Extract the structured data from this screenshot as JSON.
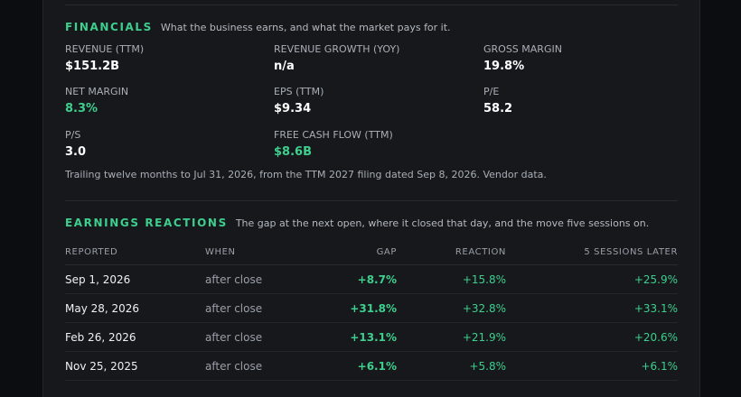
{
  "financials": {
    "title": "FINANCIALS",
    "subtitle": "What the business earns, and what the market pays for it.",
    "metrics": [
      {
        "label": "REVENUE (TTM)",
        "value": "$151.2B"
      },
      {
        "label": "REVENUE GROWTH (YOY)",
        "value": "n/a"
      },
      {
        "label": "GROSS MARGIN",
        "value": "19.8%"
      },
      {
        "label": "NET MARGIN",
        "value": "8.3%"
      },
      {
        "label": "EPS (TTM)",
        "value": "$9.34"
      },
      {
        "label": "P/E",
        "value": "58.2"
      },
      {
        "label": "P/S",
        "value": "3.0"
      },
      {
        "label": "FREE CASH FLOW (TTM)",
        "value": "$8.6B"
      }
    ],
    "note": "Trailing twelve months to Jul 31, 2026, from the TTM 2027 filing dated Sep 8, 2026. Vendor data."
  },
  "earnings": {
    "title": "EARNINGS REACTIONS",
    "subtitle": "The gap at the next open, where it closed that day, and the move five sessions on.",
    "columns": [
      "REPORTED",
      "WHEN",
      "GAP",
      "REACTION",
      "5 SESSIONS LATER"
    ],
    "rows": [
      {
        "reported": "Sep 1, 2026",
        "when": "after close",
        "gap": "+8.7%",
        "reaction": "+15.8%",
        "later": "+25.9%"
      },
      {
        "reported": "May 28, 2026",
        "when": "after close",
        "gap": "+31.8%",
        "reaction": "+32.8%",
        "later": "+33.1%"
      },
      {
        "reported": "Feb 26, 2026",
        "when": "after close",
        "gap": "+13.1%",
        "reaction": "+21.9%",
        "later": "+20.6%"
      },
      {
        "reported": "Nov 25, 2025",
        "when": "after close",
        "gap": "+6.1%",
        "reaction": "+5.8%",
        "later": "+6.1%"
      }
    ]
  },
  "colors": {
    "accent": "#3ecf8e",
    "background": "#0b0d10",
    "panel": "#16181c"
  }
}
